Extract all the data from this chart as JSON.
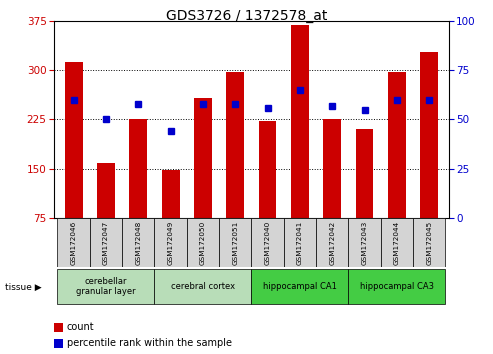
{
  "title": "GDS3726 / 1372578_at",
  "samples": [
    "GSM172046",
    "GSM172047",
    "GSM172048",
    "GSM172049",
    "GSM172050",
    "GSM172051",
    "GSM172040",
    "GSM172041",
    "GSM172042",
    "GSM172043",
    "GSM172044",
    "GSM172045"
  ],
  "counts": [
    312,
    158,
    226,
    148,
    258,
    298,
    222,
    370,
    226,
    210,
    298,
    328
  ],
  "percentiles": [
    60,
    50,
    58,
    44,
    58,
    58,
    56,
    65,
    57,
    55,
    60,
    60
  ],
  "bar_color": "#cc0000",
  "dot_color": "#0000cc",
  "y_min": 75,
  "y_max": 375,
  "y_ticks_left": [
    75,
    150,
    225,
    300,
    375
  ],
  "y_ticks_right": [
    0,
    25,
    50,
    75,
    100
  ],
  "tissue_groups": [
    {
      "label": "cerebellar\ngranular layer",
      "start": 0,
      "end": 3,
      "color": "#b8ddb8"
    },
    {
      "label": "cerebral cortex",
      "start": 3,
      "end": 6,
      "color": "#b8ddb8"
    },
    {
      "label": "hippocampal CA1",
      "start": 6,
      "end": 9,
      "color": "#44cc44"
    },
    {
      "label": "hippocampal CA3",
      "start": 9,
      "end": 12,
      "color": "#44cc44"
    }
  ],
  "tick_label_color_left": "#cc0000",
  "tick_label_color_right": "#0000cc",
  "tissue_label": "tissue",
  "legend_count": "count",
  "legend_pct": "percentile rank within the sample",
  "legend_count_color": "#cc0000",
  "legend_pct_color": "#0000cc"
}
